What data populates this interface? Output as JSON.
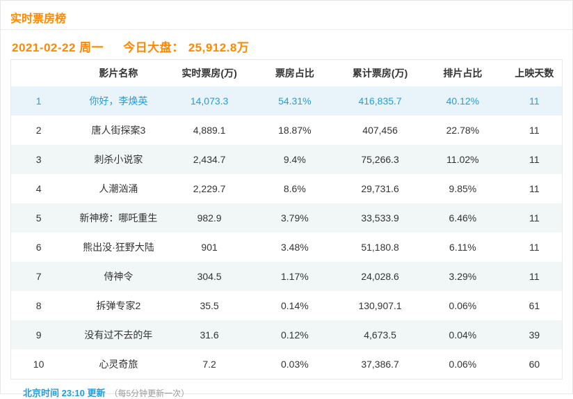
{
  "page": {
    "title": "实时票房榜",
    "accent_orange": "#ff8800",
    "accent_blue": "#1e9de2",
    "highlight_row_bg": "#e8f4f9",
    "stripe_row_bg": "#f1f6f7"
  },
  "summary": {
    "date": "2021-02-22 周一",
    "market_label": "今日大盘：",
    "market_value": "25,912.8万"
  },
  "table": {
    "columns": {
      "rank": "",
      "name": "影片名称",
      "realtime": "实时票房(万)",
      "share": "票房占比",
      "cumulative": "累计票房(万)",
      "scheduling": "排片占比",
      "days": "上映天数"
    },
    "rows": [
      {
        "rank": "1",
        "name": "你好，李焕英",
        "realtime": "14,073.3",
        "share": "54.31%",
        "cumulative": "416,835.7",
        "scheduling": "40.12%",
        "days": "11",
        "highlighted": true
      },
      {
        "rank": "2",
        "name": "唐人街探案3",
        "realtime": "4,889.1",
        "share": "18.87%",
        "cumulative": "407,456",
        "scheduling": "22.78%",
        "days": "11",
        "highlighted": false
      },
      {
        "rank": "3",
        "name": "刺杀小说家",
        "realtime": "2,434.7",
        "share": "9.4%",
        "cumulative": "75,266.3",
        "scheduling": "11.02%",
        "days": "11",
        "highlighted": false
      },
      {
        "rank": "4",
        "name": "人潮汹涌",
        "realtime": "2,229.7",
        "share": "8.6%",
        "cumulative": "29,731.6",
        "scheduling": "9.85%",
        "days": "11",
        "highlighted": false
      },
      {
        "rank": "5",
        "name": "新神榜：哪吒重生",
        "realtime": "982.9",
        "share": "3.79%",
        "cumulative": "33,533.9",
        "scheduling": "6.46%",
        "days": "11",
        "highlighted": false
      },
      {
        "rank": "6",
        "name": "熊出没·狂野大陆",
        "realtime": "901",
        "share": "3.48%",
        "cumulative": "51,180.8",
        "scheduling": "6.11%",
        "days": "11",
        "highlighted": false
      },
      {
        "rank": "7",
        "name": "侍神令",
        "realtime": "304.5",
        "share": "1.17%",
        "cumulative": "24,028.6",
        "scheduling": "3.29%",
        "days": "11",
        "highlighted": false
      },
      {
        "rank": "8",
        "name": "拆弹专家2",
        "realtime": "35.5",
        "share": "0.14%",
        "cumulative": "130,907.1",
        "scheduling": "0.06%",
        "days": "61",
        "highlighted": false
      },
      {
        "rank": "9",
        "name": "没有过不去的年",
        "realtime": "31.6",
        "share": "0.12%",
        "cumulative": "4,673.5",
        "scheduling": "0.04%",
        "days": "39",
        "highlighted": false
      },
      {
        "rank": "10",
        "name": "心灵奇旅",
        "realtime": "7.2",
        "share": "0.03%",
        "cumulative": "37,386.7",
        "scheduling": "0.06%",
        "days": "60",
        "highlighted": false
      }
    ]
  },
  "footer": {
    "update_time_text": "北京时间 23:10 更新",
    "update_note": "（每5分钟更新一次）"
  }
}
